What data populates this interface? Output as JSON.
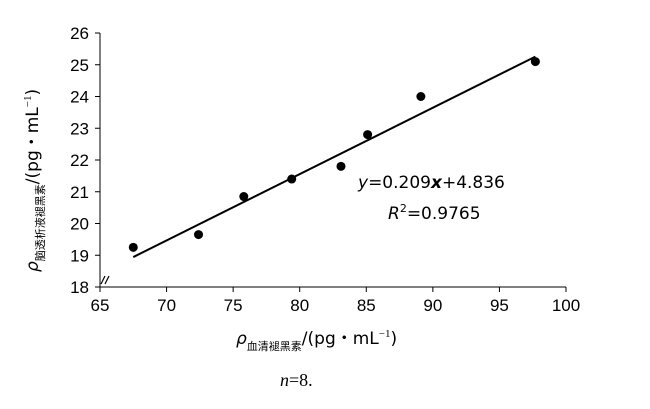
{
  "chart_data": {
    "type": "scatter",
    "xlabel": {
      "main": "ρ",
      "sub": "血清褪黑素",
      "unit": "/(pg・mL",
      "exp": "−1",
      "close": ")"
    },
    "ylabel": {
      "main": "ρ",
      "sub": "脑透析液褪黑素",
      "unit": "/(pg・mL",
      "exp": "−1",
      "close": ")"
    },
    "xlim": [
      65,
      100
    ],
    "ylim": [
      18,
      26
    ],
    "x_ticks": [
      "65",
      "70",
      "75",
      "80",
      "85",
      "90",
      "95",
      "100"
    ],
    "y_ticks": [
      "18",
      "19",
      "20",
      "21",
      "22",
      "23",
      "24",
      "25",
      "26"
    ],
    "points": [
      {
        "x": 67.5,
        "y": 19.25
      },
      {
        "x": 72.4,
        "y": 19.65
      },
      {
        "x": 75.8,
        "y": 20.85
      },
      {
        "x": 79.4,
        "y": 21.4
      },
      {
        "x": 83.1,
        "y": 21.8
      },
      {
        "x": 85.1,
        "y": 22.8
      },
      {
        "x": 89.1,
        "y": 24.0
      },
      {
        "x": 97.7,
        "y": 25.1
      }
    ],
    "trendline": {
      "slope": 0.209,
      "intercept": 4.836,
      "x_start": 67.5,
      "x_end": 97.7
    },
    "annotations": {
      "equation": {
        "y_var": "y",
        "eq_mid": "=0.209",
        "x_var": "x",
        "eq_tail": "+4.836"
      },
      "r2": {
        "r": "R",
        "sup": "2",
        "value": "=0.9765"
      }
    },
    "grid": false,
    "axis_break": "//"
  },
  "caption": {
    "n_var": "n",
    "rest": "=8."
  }
}
